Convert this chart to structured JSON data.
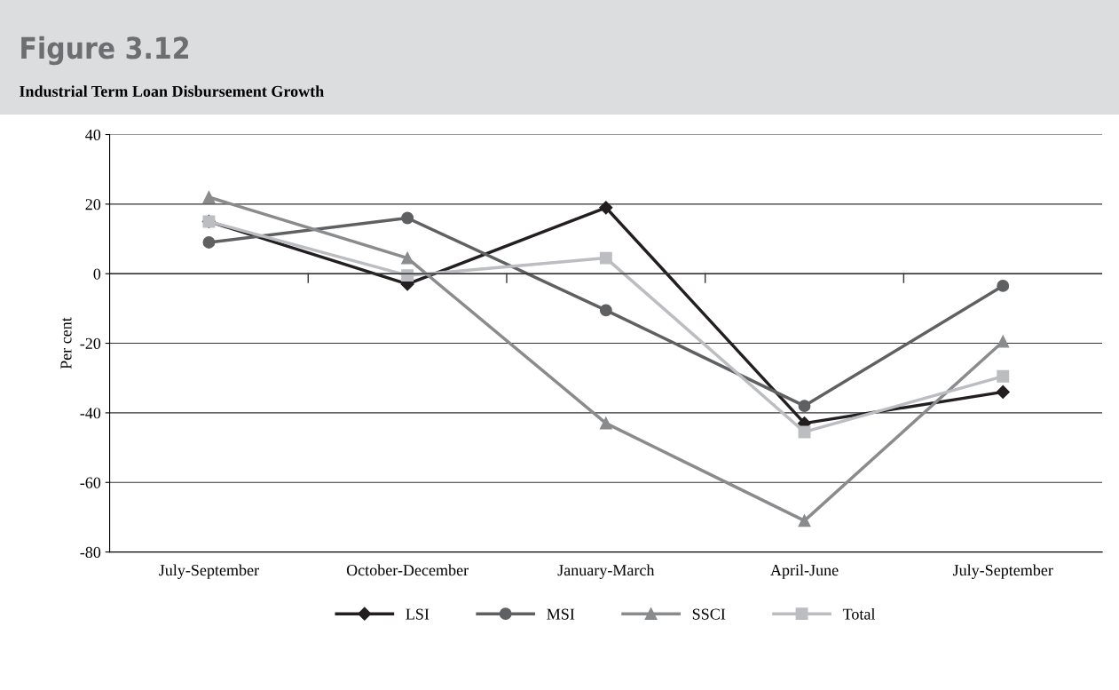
{
  "chart_data": {
    "type": "line",
    "title": "Figure 3.12",
    "subtitle": "Industrial Term Loan Disbursement Growth",
    "ylabel": "Per cent",
    "categories": [
      "July-September",
      "October-December",
      "January-March",
      "April-June",
      "July-September"
    ],
    "series": [
      {
        "name": "LSI",
        "color": "#231f20",
        "marker": "diamond",
        "values": [
          15,
          -3,
          19,
          -43,
          -34
        ]
      },
      {
        "name": "MSI",
        "color": "#5f6062",
        "marker": "circle",
        "values": [
          9,
          16,
          -10.5,
          -38,
          -3.5
        ]
      },
      {
        "name": "SSCI",
        "color": "#8a8b8d",
        "marker": "triangle",
        "values": [
          22,
          4.5,
          -43,
          -71,
          -19.5
        ]
      },
      {
        "name": "Total",
        "color": "#bcbdc0",
        "marker": "square",
        "values": [
          15,
          -0.5,
          4.5,
          -45.5,
          -29.5
        ]
      }
    ],
    "ylim": [
      -80,
      40
    ],
    "yticks": [
      -80,
      -60,
      -40,
      -20,
      0,
      20,
      40
    ],
    "grid": "y",
    "legend": "bottom",
    "line_style": "solid"
  }
}
